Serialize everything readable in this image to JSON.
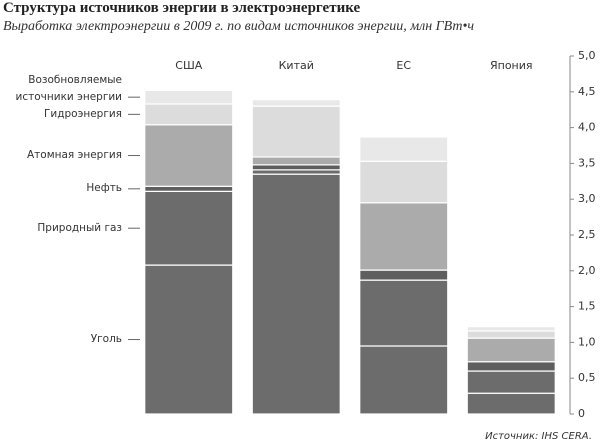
{
  "chart_data": {
    "type": "bar",
    "stacked": true,
    "title": "Структура источников энергии в электроэнергетике",
    "subtitle": "Выработка электроэнергии в 2009 г. по видам источников энергии, млн ГВт•ч",
    "source": "Источник: IHS CERA.",
    "categories": [
      "США",
      "Китай",
      "ЕС",
      "Япония"
    ],
    "series": [
      {
        "name": "Уголь",
        "color": "#6c6c6c",
        "values": [
          2.08,
          3.35,
          0.95,
          0.29
        ]
      },
      {
        "name": "Природный газ",
        "color": "#6c6c6c",
        "values": [
          1.03,
          0.06,
          0.92,
          0.31
        ]
      },
      {
        "name": "Нефть",
        "color": "#5e5e5e",
        "values": [
          0.07,
          0.07,
          0.14,
          0.13
        ]
      },
      {
        "name": "Атомная энергия",
        "color": "#ababab",
        "values": [
          0.86,
          0.11,
          0.94,
          0.33
        ]
      },
      {
        "name": "Гидроэнергия",
        "color": "#dcdcdc",
        "values": [
          0.29,
          0.71,
          0.58,
          0.1
        ]
      },
      {
        "name": "Возобновляемые источники энергии",
        "color": "#e8e8e8",
        "values": [
          0.19,
          0.09,
          0.34,
          0.06
        ]
      }
    ],
    "ylim": [
      0,
      5
    ],
    "yticks": [
      0,
      {
        "value": 0.5,
        "label": "0,5"
      },
      {
        "value": 1,
        "label": "1,0"
      },
      {
        "value": 1.5,
        "label": "1,5"
      },
      {
        "value": 2,
        "label": "2,0"
      },
      {
        "value": 2.5,
        "label": "2,5"
      },
      {
        "value": 3,
        "label": "3,0"
      },
      {
        "value": 3.5,
        "label": "3,5"
      },
      {
        "value": 4,
        "label": "4,0"
      },
      {
        "value": 4.5,
        "label": "4,5"
      },
      {
        "value": 5,
        "label": "5,0"
      }
    ],
    "y_axis_side": "right"
  }
}
